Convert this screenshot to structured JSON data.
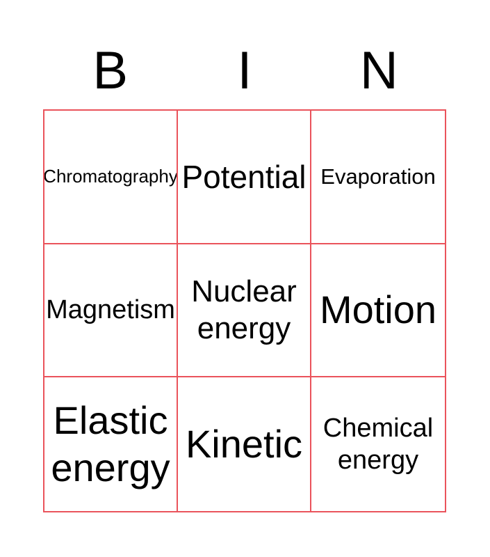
{
  "title": {
    "letters": [
      "B",
      "I",
      "N"
    ]
  },
  "card": {
    "rows": 3,
    "cols": 3,
    "border_color": "#ea535b",
    "text_color": "#000000",
    "background_color": "#ffffff",
    "cells": [
      {
        "label": "Chromatography"
      },
      {
        "label": "Potential"
      },
      {
        "label": "Evaporation"
      },
      {
        "label": "Magnetism"
      },
      {
        "label": "Nuclear energy"
      },
      {
        "label": "Motion"
      },
      {
        "label": "Elastic energy"
      },
      {
        "label": "Kinetic"
      },
      {
        "label": "Chemical energy"
      }
    ]
  }
}
